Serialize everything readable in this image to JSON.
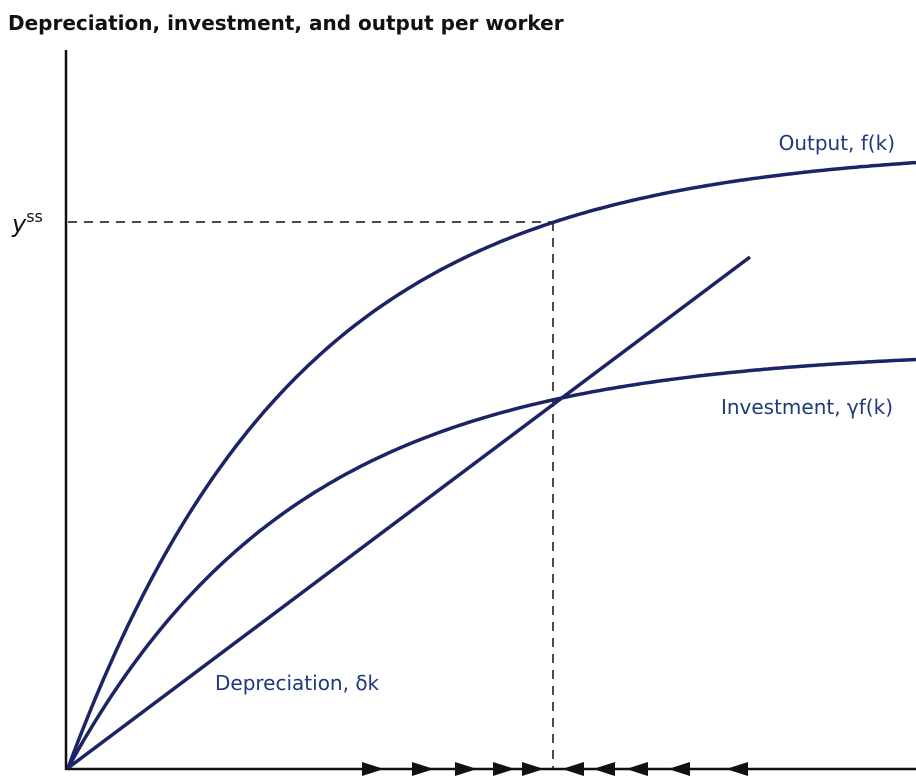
{
  "title": "Depreciation, investment, and output per worker",
  "y_label": {
    "base": "y",
    "sup": "ss"
  },
  "curves": {
    "output": "Output, f(k)",
    "investment": "Investment, γf(k)",
    "depreciation": "Depreciation, δk"
  }
}
